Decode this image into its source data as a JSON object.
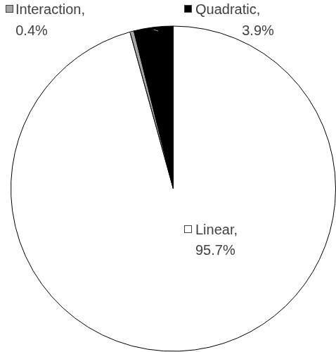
{
  "chart_data": {
    "type": "pie",
    "categories": [
      "Linear,",
      "Interaction,",
      "Quadratic,"
    ],
    "values": [
      95.7,
      0.4,
      3.9
    ],
    "value_labels": [
      "95.7%",
      "0.4%",
      "3.9%"
    ],
    "colors": [
      "#ffffff",
      "#a6a6a6",
      "#000000"
    ],
    "data_labels": true
  }
}
